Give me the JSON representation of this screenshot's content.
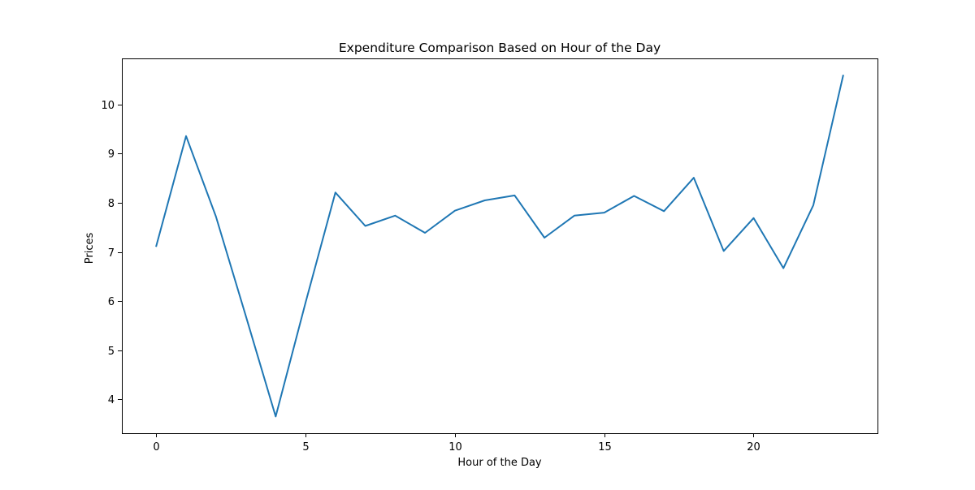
{
  "chart_data": {
    "type": "line",
    "title": "Expenditure Comparison Based on Hour of the Day",
    "xlabel": "Hour of the Day",
    "ylabel": "Prices",
    "xlim": [
      -1.15,
      24.15
    ],
    "ylim": [
      3.31,
      10.94
    ],
    "xticks": [
      0,
      5,
      10,
      15,
      20
    ],
    "yticks": [
      4,
      5,
      6,
      7,
      8,
      9,
      10
    ],
    "grid": false,
    "legend": "none",
    "series": [
      {
        "color": "#1f77b4",
        "x": [
          0,
          1,
          2,
          3,
          4,
          5,
          6,
          7,
          8,
          9,
          10,
          11,
          12,
          13,
          14,
          15,
          16,
          17,
          18,
          19,
          20,
          21,
          22,
          23
        ],
        "y": [
          7.12,
          9.36,
          7.72,
          5.7,
          3.65,
          5.97,
          8.21,
          7.53,
          7.74,
          7.39,
          7.84,
          8.05,
          8.15,
          7.29,
          7.74,
          7.8,
          8.14,
          7.83,
          8.51,
          7.02,
          7.69,
          6.67,
          7.95,
          10.59
        ]
      }
    ]
  }
}
